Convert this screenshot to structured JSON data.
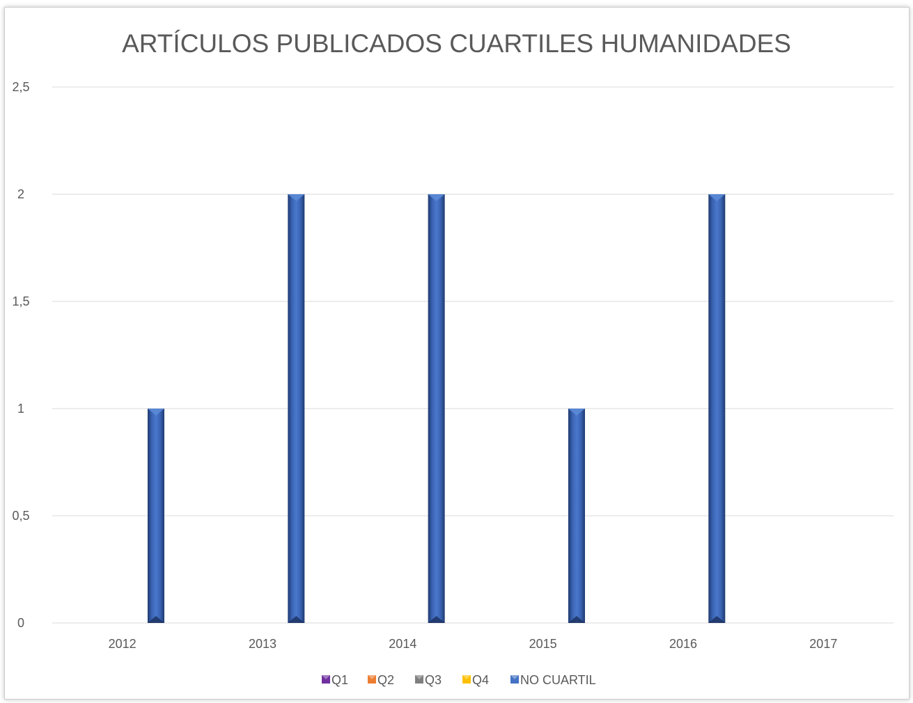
{
  "chart_data": {
    "type": "bar",
    "title": "ARTÍCULOS PUBLICADOS CUARTILES HUMANIDADES",
    "xlabel": "",
    "ylabel": "",
    "categories": [
      "2012",
      "2013",
      "2014",
      "2015",
      "2016",
      "2017"
    ],
    "series": [
      {
        "name": "Q1",
        "color": "#7030a0",
        "values": [
          0,
          0,
          0,
          0,
          0,
          0
        ]
      },
      {
        "name": "Q2",
        "color": "#ed7d31",
        "values": [
          0,
          0,
          0,
          0,
          0,
          0
        ]
      },
      {
        "name": "Q3",
        "color": "#7f7f7f",
        "values": [
          0,
          0,
          0,
          0,
          0,
          0
        ]
      },
      {
        "name": "Q4",
        "color": "#ffc000",
        "values": [
          0,
          0,
          0,
          0,
          0,
          0
        ]
      },
      {
        "name": "NO CUARTIL",
        "color": "#4472c4",
        "values": [
          1,
          2,
          2,
          1,
          2,
          0
        ]
      }
    ],
    "ylim": [
      0,
      2.5
    ],
    "yticks": [
      "0",
      "0,5",
      "1",
      "1,5",
      "2",
      "2,5"
    ],
    "grid": true,
    "legend_position": "bottom"
  }
}
